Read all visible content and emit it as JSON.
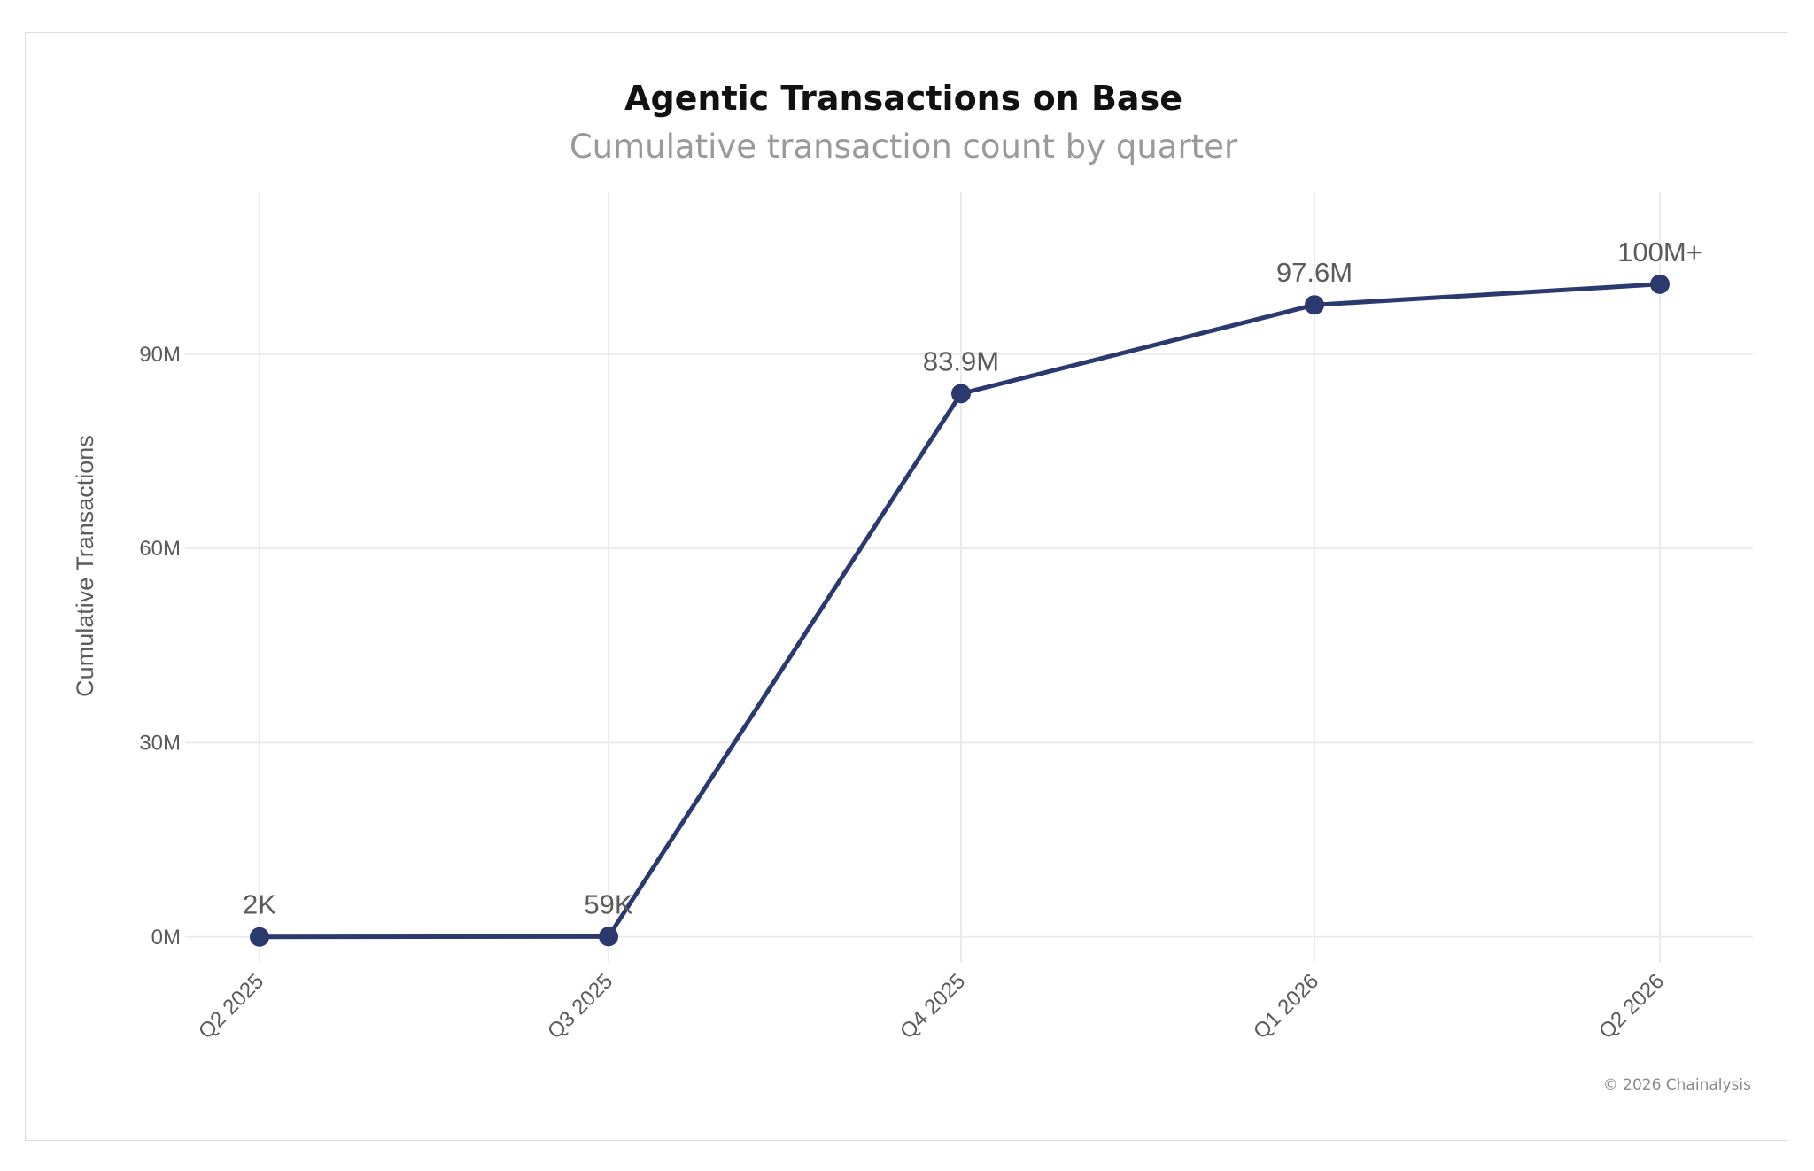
{
  "chart_data": {
    "type": "line",
    "title": "Agentic Transactions on Base",
    "subtitle": "Cumulative transaction count by quarter",
    "xlabel": "",
    "ylabel": "Cumulative Transactions",
    "categories": [
      "Q2 2025",
      "Q3 2025",
      "Q4 2025",
      "Q1 2026",
      "Q2 2026"
    ],
    "series": [
      {
        "values": [
          2000,
          59000,
          83900000,
          97600000,
          100800000
        ],
        "labels": [
          "2K",
          "59K",
          "83.9M",
          "97.6M",
          "100M+"
        ]
      }
    ],
    "yticks": [
      0,
      30000000,
      60000000,
      90000000
    ],
    "ytick_labels": [
      "0M",
      "30M",
      "60M",
      "90M"
    ],
    "ylim": [
      -4000000,
      115000000
    ],
    "grid": true,
    "legend": "none",
    "credit": "© 2026 Chainalysis",
    "colors": {
      "line": "#2b3a6e",
      "grid": "#ebebeb",
      "text": "#5b5b5b",
      "subtitle": "#9a9a9a"
    }
  }
}
